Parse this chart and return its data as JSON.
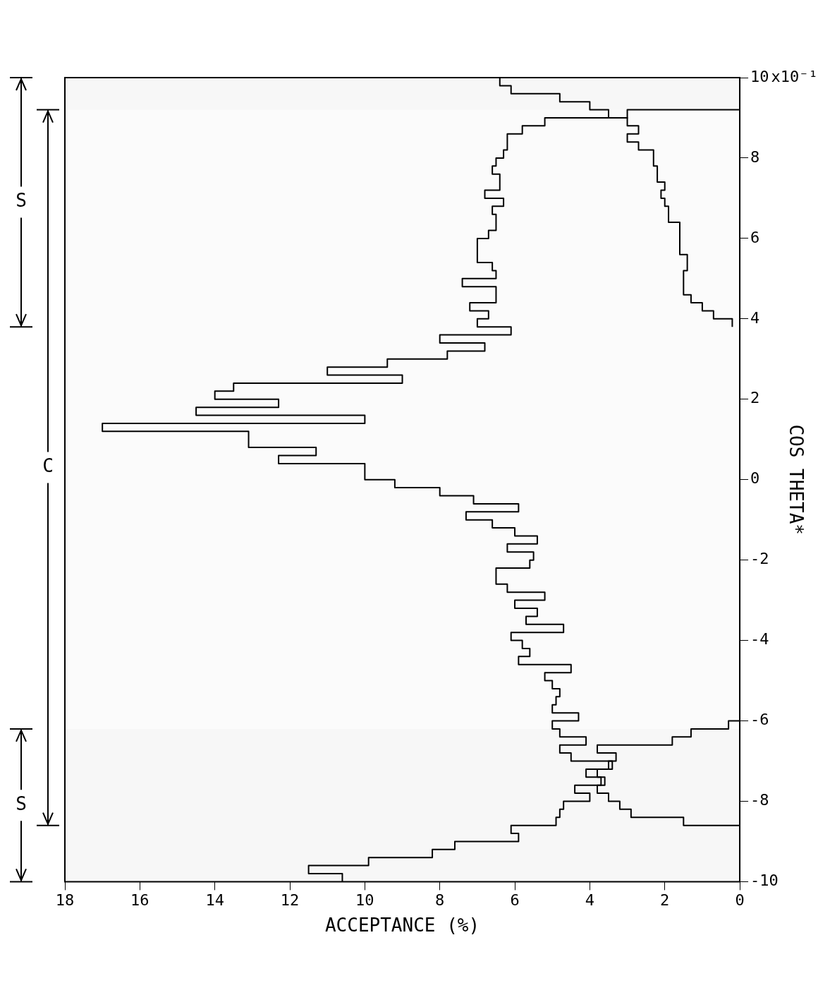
{
  "chart_data": {
    "type": "step",
    "orientation": "horizontal",
    "xlabel": "ACCEPTANCE (%)",
    "ylabel": "COS THETA*",
    "xlim": [
      18,
      0
    ],
    "xticks": [
      0,
      2,
      4,
      6,
      8,
      10,
      12,
      14,
      16,
      18
    ],
    "ylim": [
      -10,
      10
    ],
    "yticks": [
      -10,
      -8,
      -6,
      -4,
      -2,
      0,
      2,
      4,
      6,
      8,
      10
    ],
    "annotations": [
      "x10⁻¹"
    ],
    "legend": false,
    "series": [
      {
        "color": "#000000",
        "x": [
          -10,
          -9.8,
          -9.6,
          -9.4,
          -9.2,
          -9.0,
          -8.8,
          -8.6,
          -8.4,
          -8.2,
          -8.0,
          -7.8,
          -7.6,
          -7.4,
          -7.2,
          -7.0,
          -6.8,
          -6.6,
          -6.4,
          -6.2,
          -6.0
        ],
        "values": [
          10.6,
          11.5,
          9.9,
          8.2,
          7.6,
          5.9,
          6.1,
          4.9,
          4.8,
          4.7,
          4.0,
          4.4,
          3.7,
          4.1,
          3.5,
          3.3,
          3.8,
          1.8,
          1.3,
          0.3,
          0
        ]
      },
      {
        "color": "#000000",
        "x": [
          -8.8,
          -8.6,
          -8.4,
          -8.2,
          -8.0,
          -7.8,
          -7.6,
          -7.4,
          -7.2,
          -7.0,
          -6.8,
          -6.6,
          -6.4,
          -6.2,
          -6.0,
          -5.8,
          -5.6,
          -5.4,
          -5.2,
          -5.0,
          -4.8,
          -4.6,
          -4.4,
          -4.2,
          -4.0,
          -3.8,
          -3.6,
          -3.4,
          -3.2,
          -3.0,
          -2.8,
          -2.6,
          -2.4,
          -2.2,
          -2.0,
          -1.8,
          -1.6,
          -1.4,
          -1.2,
          -1.0,
          -0.8,
          -0.6,
          -0.4,
          -0.2,
          0,
          0.2,
          0.4,
          0.6,
          0.8,
          1.0,
          1.2,
          1.4,
          1.6,
          1.8,
          2.0,
          2.2,
          2.4,
          2.6,
          2.8,
          3.0,
          3.2,
          3.4,
          3.6,
          3.8,
          4.0,
          4.2,
          4.4,
          4.6,
          4.8,
          5.0,
          5.2,
          5.4,
          5.6,
          5.8,
          6.0,
          6.2,
          6.4,
          6.6,
          6.8,
          7.0,
          7.2,
          7.4,
          7.6,
          7.8,
          8.0,
          8.2,
          8.4,
          8.6,
          8.8,
          9.0,
          9.2
        ],
        "values": [
          0,
          1.5,
          2.9,
          3.2,
          3.5,
          3.8,
          3.6,
          3.8,
          3.4,
          4.5,
          4.8,
          4.1,
          4.8,
          5.0,
          4.3,
          5.0,
          4.9,
          4.8,
          5.0,
          5.2,
          4.5,
          5.9,
          5.6,
          5.8,
          6.1,
          4.7,
          5.7,
          5.4,
          6.0,
          5.2,
          6.2,
          6.5,
          6.5,
          5.6,
          5.5,
          6.2,
          5.4,
          6.0,
          6.6,
          7.3,
          5.9,
          7.1,
          8.0,
          9.2,
          10.0,
          10.0,
          12.3,
          11.3,
          13.1,
          13.1,
          17.0,
          10.0,
          14.5,
          12.3,
          14.0,
          13.5,
          9.0,
          11.0,
          9.4,
          7.8,
          6.8,
          8.0,
          6.1,
          7.0,
          6.7,
          7.2,
          6.5,
          6.5,
          7.4,
          6.5,
          6.6,
          7.0,
          7.0,
          7.0,
          6.7,
          6.5,
          6.5,
          6.6,
          6.3,
          6.8,
          6.4,
          6.4,
          6.6,
          6.5,
          6.3,
          6.2,
          6.2,
          5.8,
          5.2,
          3.0,
          0
        ]
      },
      {
        "color": "#000000",
        "x": [
          3.8,
          4.0,
          4.2,
          4.4,
          4.6,
          4.8,
          5.0,
          5.2,
          5.4,
          5.6,
          5.8,
          6.0,
          6.2,
          6.4,
          6.6,
          6.8,
          7.0,
          7.2,
          7.4,
          7.6,
          7.8,
          8.0,
          8.2,
          8.4,
          8.6,
          8.8,
          9.0,
          9.2,
          9.4,
          9.6,
          9.8,
          10
        ],
        "values": [
          0.2,
          0.7,
          1.0,
          1.3,
          1.5,
          1.5,
          1.5,
          1.4,
          1.4,
          1.6,
          1.6,
          1.6,
          1.6,
          1.9,
          1.9,
          2.0,
          2.1,
          2.0,
          2.2,
          2.2,
          2.3,
          2.3,
          2.7,
          3.0,
          2.7,
          3.0,
          3.5,
          4.0,
          4.8,
          6.1,
          6.4,
          6.4
        ]
      }
    ],
    "bands": [
      {
        "axis": "y",
        "from": 3.8,
        "to": 10,
        "label": "S",
        "color": "#f7f7f7"
      },
      {
        "axis": "y",
        "from": -8.6,
        "to": 9.2,
        "label": "C",
        "color": "#fbfbfb"
      },
      {
        "axis": "y",
        "from": -10,
        "to": -6.2,
        "label": "S",
        "color": "#f7f7f7"
      }
    ]
  }
}
